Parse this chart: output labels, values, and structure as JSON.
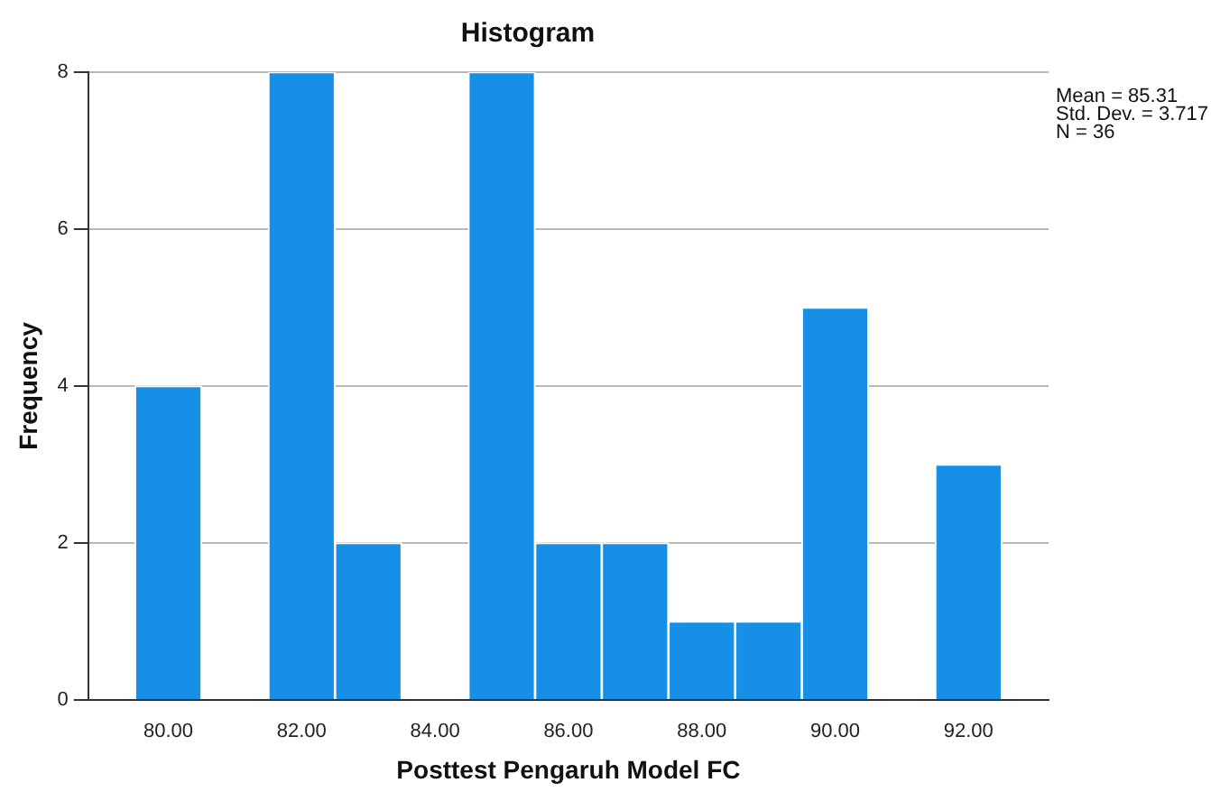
{
  "chart_data": {
    "type": "histogram",
    "title": "Histogram",
    "xlabel": "Posttest Pengaruh Model FC",
    "ylabel": "Frequency",
    "bins": [
      79.5,
      80.5,
      81.5,
      82.5,
      83.5,
      84.5,
      85.5,
      86.5,
      87.5,
      88.5,
      89.5,
      90.5,
      91.5,
      92.5
    ],
    "values": [
      4,
      0,
      8,
      2,
      0,
      8,
      2,
      2,
      1,
      1,
      5,
      0,
      3
    ],
    "color": "#1690e6",
    "xlim": [
      78.8,
      93.2
    ],
    "xticks": [
      {
        "value": 80,
        "label": "80.00"
      },
      {
        "value": 82,
        "label": "82.00"
      },
      {
        "value": 84,
        "label": "84.00"
      },
      {
        "value": 86,
        "label": "86.00"
      },
      {
        "value": 88,
        "label": "88.00"
      },
      {
        "value": 90,
        "label": "90.00"
      },
      {
        "value": 92,
        "label": "92.00"
      }
    ],
    "ylim": [
      0,
      8
    ],
    "yticks": [
      0,
      2,
      4,
      6,
      8
    ],
    "grid": "y",
    "legend": false,
    "annotations": [
      "Mean = 85.31",
      "Std. Dev. = 3.717",
      "N = 36"
    ]
  }
}
